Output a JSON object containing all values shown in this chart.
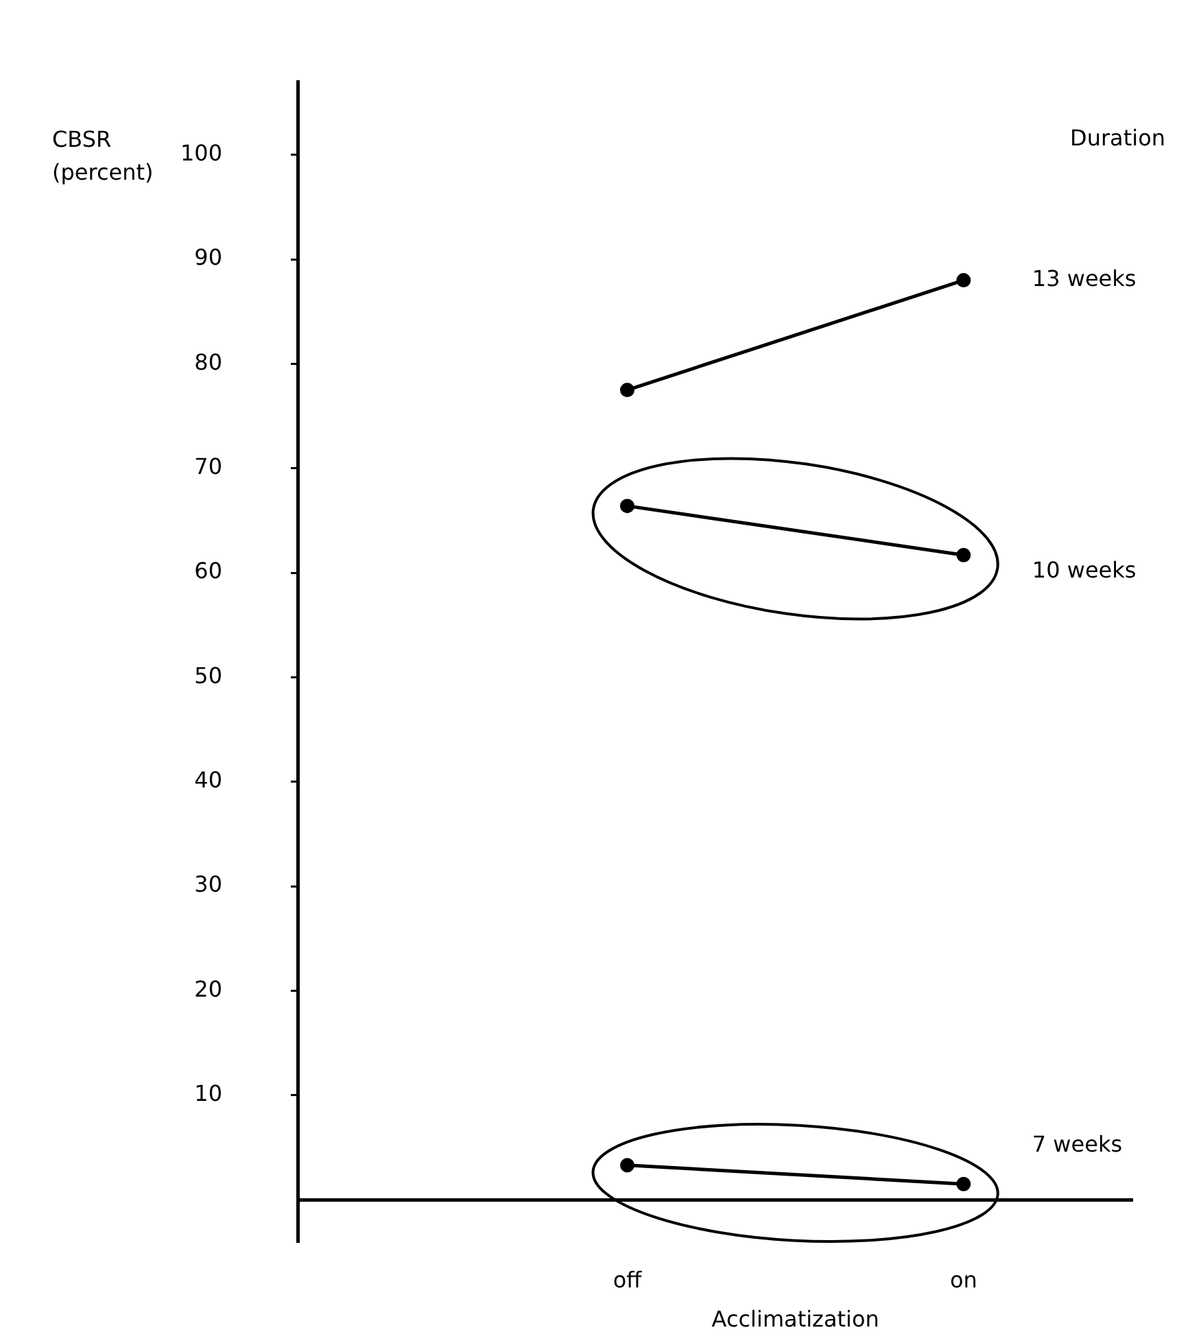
{
  "chart_data": {
    "type": "line",
    "ylabel": "CBSR (percent)",
    "xlabel": "Acclimatization",
    "legend_title": "Duration",
    "categories": [
      "off",
      "on"
    ],
    "series": [
      {
        "name": "13 weeks",
        "color": "#000000",
        "values": [
          77.5,
          88
        ]
      },
      {
        "name": "10 weeks",
        "color": "#000000",
        "values": [
          66.4,
          61.7
        ]
      },
      {
        "name": "7 weeks",
        "color": "#000000",
        "values": [
          3.3,
          1.5
        ]
      }
    ],
    "ylim": [
      -4,
      107
    ],
    "yticks": [
      10,
      20,
      30,
      40,
      50,
      60,
      70,
      80,
      90,
      100
    ],
    "grid": false,
    "marker": "circle",
    "line_style": "solid"
  }
}
